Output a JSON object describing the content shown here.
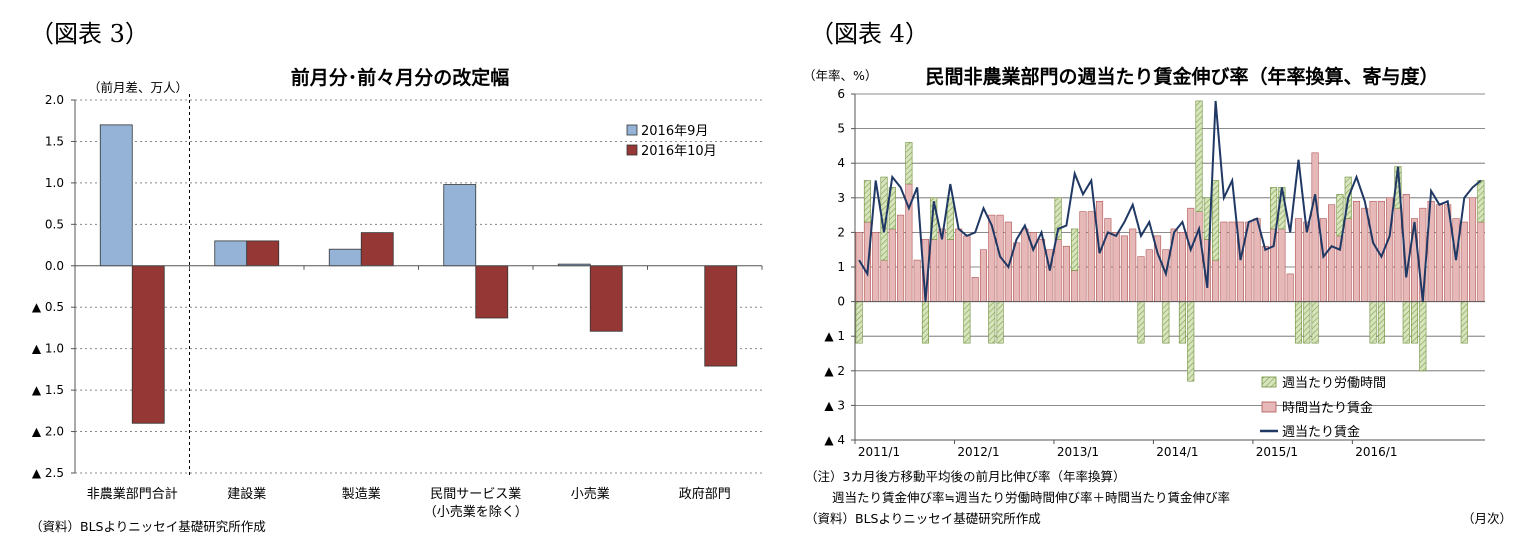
{
  "figure3": {
    "label": "（図表 3）",
    "source": "（資料）BLSよりニッセイ基礎研究所作成"
  },
  "figure4": {
    "label": "（図表 4）",
    "note_line1": "（注）3カ月後方移動平均後の前月比伸び率（年率換算）",
    "note_line2": "週当たり賃金伸び率≒週当たり労働時間伸び率＋時間当たり賃金伸び率",
    "source": "（資料）BLSよりニッセイ基礎研究所作成",
    "xunit": "（月次）"
  },
  "chart_data": [
    {
      "type": "bar",
      "title": "前月分･前々月分の改定幅",
      "ylabel": "（前月差、万人）",
      "xlabel": "",
      "categories": [
        "非農業部門合計",
        "建設業",
        "製造業",
        "民間サービス業",
        "小売業",
        "政府部門"
      ],
      "category_sublabels": [
        "",
        "",
        "",
        "（小売業を除く）",
        "",
        ""
      ],
      "series": [
        {
          "name": "2016年9月",
          "color": "#95B3D7",
          "values": [
            1.7,
            0.3,
            0.2,
            0.98,
            0.02,
            0.0
          ]
        },
        {
          "name": "2016年10月",
          "color": "#953735",
          "values": [
            -1.9,
            0.3,
            0.4,
            -0.63,
            -0.79,
            -1.21
          ]
        }
      ],
      "ylim": [
        -2.5,
        2.0
      ],
      "yticks": [
        2.0,
        1.5,
        1.0,
        0.5,
        0.0,
        -0.5,
        -1.0,
        -1.5,
        -2.0,
        -2.5
      ],
      "ytick_labels": [
        "2.0",
        "1.5",
        "1.0",
        "0.5",
        "0.0",
        "▲ 0.5",
        "▲ 1.0",
        "▲ 1.5",
        "▲ 2.0",
        "▲ 2.5"
      ],
      "grid": true,
      "legend": "top-right"
    },
    {
      "type": "bar",
      "title": "民間非農業部門の週当たり賃金伸び率（年率換算、寄与度）",
      "ylabel": "（年率、%）",
      "xlabel": "",
      "x_start": "2011/1",
      "x_labels": [
        "2011/1",
        "2012/1",
        "2013/1",
        "2014/1",
        "2015/1",
        "2016/1"
      ],
      "ylim": [
        -4,
        6
      ],
      "yticks": [
        6,
        5,
        4,
        3,
        2,
        1,
        0,
        -1,
        -2,
        -3,
        -4
      ],
      "ytick_labels": [
        "6",
        "5",
        "4",
        "3",
        "2",
        "1",
        "0",
        "▲ 1",
        "▲ 2",
        "▲ 3",
        "▲ 4"
      ],
      "grid": true,
      "legend": "bottom-right",
      "series": [
        {
          "name": "週当たり労働時間",
          "color": "#D7E4BD",
          "kind": "stacked-bar",
          "values": [
            -1.2,
            1.2,
            0,
            2.4,
            1.2,
            0,
            1.2,
            0,
            -1.2,
            1.2,
            0,
            1.2,
            0,
            -1.2,
            0,
            0,
            -1.2,
            -1.2,
            0,
            0,
            0,
            0,
            0,
            0,
            1.2,
            0,
            1.2,
            0,
            0,
            0,
            0,
            0,
            0,
            0,
            -1.2,
            0,
            0,
            -1.2,
            0,
            -1.2,
            -2.3,
            3.2,
            1.2,
            2.3,
            0,
            0,
            0,
            0,
            0,
            0,
            1.2,
            1.2,
            0,
            -1.2,
            -1.2,
            -1.2,
            0,
            0,
            1.2,
            1.2,
            0,
            0,
            -1.2,
            -1.2,
            0,
            1.2,
            -1.2,
            -1.2,
            -2.0,
            0,
            0,
            0,
            0,
            -1.2,
            0,
            1.2
          ]
        },
        {
          "name": "時間当たり賃金",
          "color": "#E6B9B8",
          "kind": "stacked-bar",
          "values": [
            2.0,
            2.3,
            2.0,
            1.2,
            2.1,
            2.5,
            3.4,
            1.2,
            1.8,
            1.8,
            2.1,
            1.8,
            2.1,
            1.9,
            0.7,
            1.5,
            2.5,
            2.5,
            2.3,
            1.7,
            2.1,
            2.0,
            1.8,
            1.5,
            1.8,
            1.6,
            0.9,
            2.6,
            2.6,
            2.9,
            2.4,
            2.0,
            1.9,
            2.1,
            1.3,
            1.5,
            1.9,
            1.5,
            2.1,
            2.0,
            2.7,
            2.6,
            1.8,
            1.2,
            2.3,
            2.3,
            2.3,
            2.3,
            2.4,
            1.6,
            2.1,
            2.1,
            0.8,
            2.4,
            2.3,
            4.3,
            2.4,
            2.8,
            1.9,
            2.4,
            2.9,
            2.7,
            2.9,
            2.9,
            3.0,
            2.7,
            3.1,
            2.4,
            2.7,
            2.9,
            2.8,
            2.8,
            2.4,
            2.3,
            3.0,
            2.3
          ]
        },
        {
          "name": "週当たり賃金",
          "color": "#1F3864",
          "kind": "line",
          "values": [
            1.2,
            0.8,
            3.5,
            2.0,
            3.6,
            3.3,
            2.7,
            3.3,
            0.0,
            2.9,
            1.8,
            3.4,
            2.1,
            1.9,
            2.0,
            2.7,
            2.2,
            1.3,
            1.0,
            1.8,
            2.2,
            1.5,
            2.0,
            0.9,
            2.1,
            2.2,
            3.7,
            3.1,
            3.5,
            1.4,
            2.0,
            1.9,
            2.3,
            2.8,
            1.9,
            2.3,
            1.4,
            0.8,
            2.0,
            2.3,
            1.5,
            2.1,
            0.4,
            5.8,
            3.0,
            3.5,
            1.2,
            2.3,
            2.4,
            1.5,
            1.6,
            3.3,
            2.0,
            4.1,
            2.0,
            3.1,
            1.3,
            1.6,
            1.5,
            3.0,
            3.6,
            2.9,
            1.7,
            1.3,
            1.9,
            3.9,
            0.7,
            2.3,
            0.0,
            3.2,
            2.8,
            2.9,
            1.2,
            3.0,
            3.3,
            3.5
          ]
        }
      ]
    }
  ]
}
